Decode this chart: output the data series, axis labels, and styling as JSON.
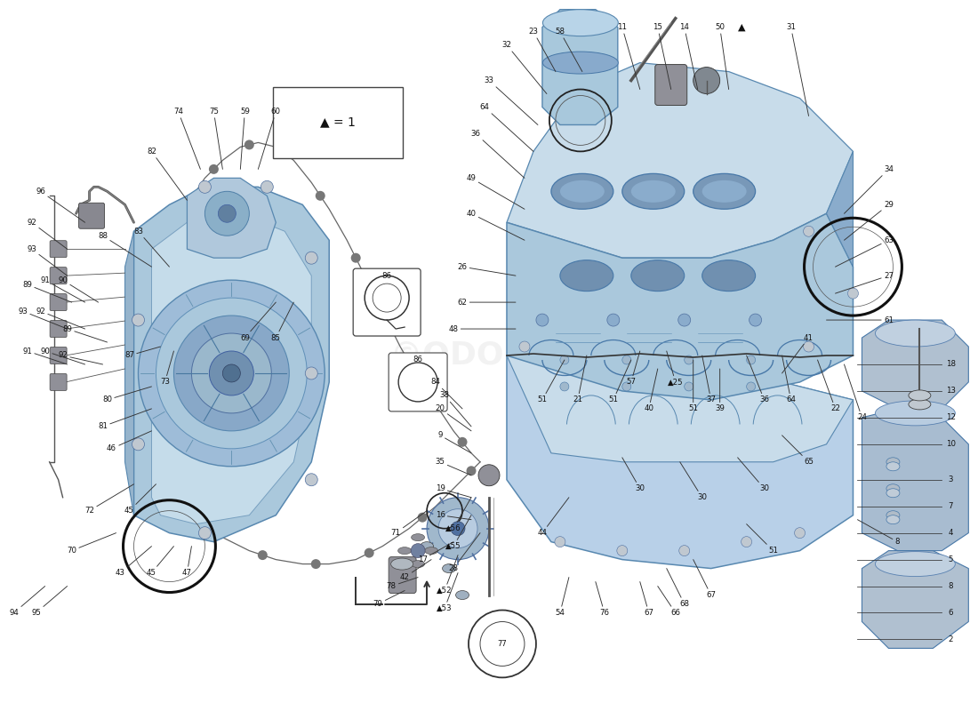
{
  "bg_color": "#ffffff",
  "block_blue_light": "#b8d0e8",
  "block_blue_mid": "#8aafc8",
  "block_blue_dark": "#6090b0",
  "timing_blue": "#9abcd0",
  "shadow_blue": "#7098b8",
  "line_color": "#1a1a1a",
  "text_color": "#111111",
  "watermark": "©ODOBIKE",
  "note_text": "▲ = 1",
  "gasket_color": "#666666",
  "part_line_color": "#333333",
  "right_parts": [
    [
      "18",
      107,
      39
    ],
    [
      "13",
      107,
      36
    ],
    [
      "12",
      107,
      33
    ],
    [
      "10",
      107,
      30
    ],
    [
      "3",
      107,
      26
    ],
    [
      "7",
      107,
      23
    ],
    [
      "4",
      107,
      20
    ],
    [
      "5",
      107,
      17
    ],
    [
      "8",
      107,
      14
    ],
    [
      "6",
      107,
      11
    ],
    [
      "2",
      107,
      8
    ]
  ]
}
